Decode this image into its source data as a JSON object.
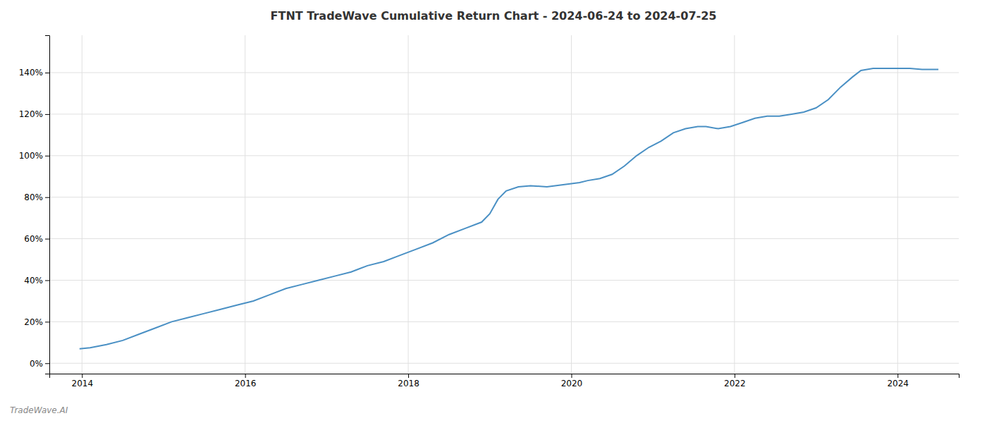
{
  "chart_data": {
    "type": "line",
    "title": "FTNT TradeWave Cumulative Return Chart - 2024-06-24 to 2024-07-25",
    "annotations": [
      "TradeWave.AI"
    ],
    "color": "#4a90c4",
    "grid": true,
    "xlim": [
      2013.6,
      2024.75
    ],
    "xticks": [
      2014,
      2016,
      2018,
      2020,
      2022,
      2024
    ],
    "ylim": [
      -5,
      158
    ],
    "yticks": [
      {
        "value": 0,
        "label": "0%"
      },
      {
        "value": 20,
        "label": "20%"
      },
      {
        "value": 40,
        "label": "40%"
      },
      {
        "value": 60,
        "label": "60%"
      },
      {
        "value": 80,
        "label": "80%"
      },
      {
        "value": 100,
        "label": "100%"
      },
      {
        "value": 120,
        "label": "120%"
      },
      {
        "value": 140,
        "label": "140%"
      }
    ],
    "x": [
      2013.97,
      2014.1,
      2014.3,
      2014.5,
      2014.7,
      2014.9,
      2015.1,
      2015.3,
      2015.5,
      2015.7,
      2015.9,
      2016.1,
      2016.3,
      2016.5,
      2016.7,
      2016.9,
      2017.1,
      2017.3,
      2017.5,
      2017.7,
      2017.9,
      2018.1,
      2018.3,
      2018.5,
      2018.7,
      2018.9,
      2019.0,
      2019.1,
      2019.2,
      2019.35,
      2019.5,
      2019.7,
      2019.9,
      2020.0,
      2020.1,
      2020.2,
      2020.35,
      2020.5,
      2020.65,
      2020.8,
      2020.95,
      2021.1,
      2021.25,
      2021.4,
      2021.55,
      2021.65,
      2021.8,
      2021.95,
      2022.1,
      2022.25,
      2022.4,
      2022.55,
      2022.7,
      2022.85,
      2023.0,
      2023.15,
      2023.3,
      2023.45,
      2023.55,
      2023.7,
      2023.85,
      2024.0,
      2024.15,
      2024.3,
      2024.5
    ],
    "values": [
      7,
      7.5,
      9,
      11,
      14,
      17,
      20,
      22,
      24,
      26,
      28,
      30,
      33,
      36,
      38,
      40,
      42,
      44,
      47,
      49,
      52,
      55,
      58,
      62,
      65,
      68,
      72,
      79,
      83,
      85,
      85.5,
      85,
      86,
      86.5,
      87,
      88,
      89,
      91,
      95,
      100,
      104,
      107,
      111,
      113,
      114,
      114,
      113,
      114,
      116,
      118,
      119,
      119,
      120,
      121,
      123,
      127,
      133,
      138,
      141,
      142,
      142,
      142,
      142,
      141.5,
      141.5
    ]
  }
}
